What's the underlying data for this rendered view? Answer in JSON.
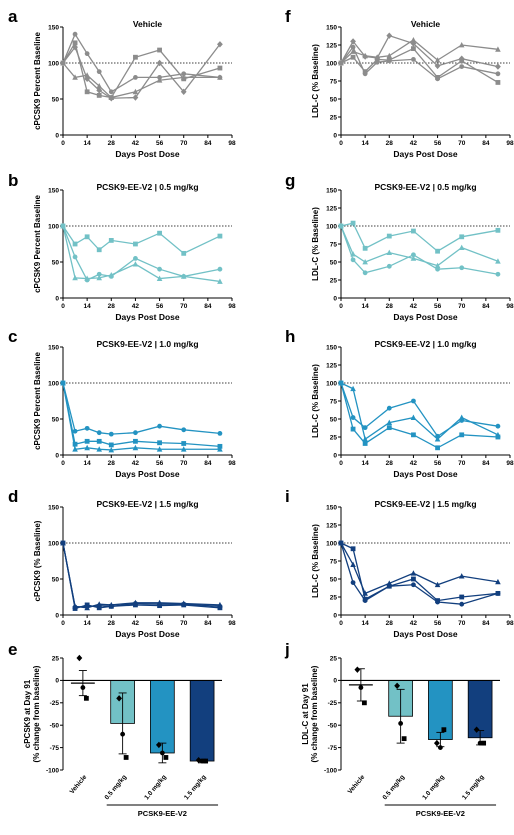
{
  "colors": {
    "Vehicle": "#8c8c8c",
    "0.5 mg/kg": "#72c1c6",
    "1.0 mg/kg": "#2393c2",
    "1.5 mg/kg": "#123f7e"
  },
  "chart_data": [
    {
      "panel": "a",
      "type": "line",
      "title": "Vehicle",
      "xlabel": "Days Post Dose",
      "ylabel": "cPCSK9 Percent Baseline",
      "xlim": [
        0,
        98
      ],
      "ylim": [
        0,
        150
      ],
      "xticks": [
        0,
        14,
        28,
        42,
        56,
        70,
        84,
        98
      ],
      "yticks": [
        0,
        50,
        100,
        150
      ],
      "reference_line": 100,
      "color_key": "Vehicle",
      "series": [
        {
          "marker": "circle",
          "x": [
            0,
            7,
            14,
            21,
            28,
            42,
            56,
            70,
            91
          ],
          "y": [
            100,
            140,
            113,
            88,
            60,
            80,
            80,
            85,
            80
          ]
        },
        {
          "marker": "square",
          "x": [
            0,
            7,
            14,
            21,
            28,
            42,
            56,
            70,
            91
          ],
          "y": [
            100,
            128,
            60,
            55,
            52,
            108,
            118,
            78,
            93
          ]
        },
        {
          "marker": "triangle",
          "x": [
            0,
            7,
            14,
            21,
            28,
            42,
            56,
            70,
            91
          ],
          "y": [
            100,
            80,
            83,
            68,
            52,
            60,
            76,
            80,
            80
          ]
        },
        {
          "marker": "diamond",
          "x": [
            0,
            7,
            14,
            21,
            28,
            42,
            56,
            70,
            91
          ],
          "y": [
            100,
            122,
            78,
            62,
            51,
            52,
            100,
            60,
            126
          ]
        }
      ]
    },
    {
      "panel": "f",
      "type": "line",
      "title": "Vehicle",
      "xlabel": "Days Post Dose",
      "ylabel": "LDL-C (% Baseline)",
      "xlim": [
        0,
        98
      ],
      "ylim": [
        0,
        150
      ],
      "xticks": [
        0,
        14,
        28,
        42,
        56,
        70,
        84,
        98
      ],
      "yticks": [
        0,
        25,
        50,
        75,
        100,
        125,
        150
      ],
      "reference_line": 100,
      "color_key": "Vehicle",
      "series": [
        {
          "marker": "circle",
          "x": [
            0,
            7,
            14,
            21,
            28,
            42,
            56,
            70,
            91
          ],
          "y": [
            100,
            122,
            85,
            101,
            103,
            105,
            78,
            95,
            85
          ]
        },
        {
          "marker": "square",
          "x": [
            0,
            7,
            14,
            21,
            28,
            42,
            56,
            70,
            91
          ],
          "y": [
            100,
            108,
            88,
            105,
            104,
            120,
            80,
            103,
            73
          ]
        },
        {
          "marker": "triangle",
          "x": [
            0,
            7,
            14,
            21,
            28,
            42,
            56,
            70,
            91
          ],
          "y": [
            100,
            116,
            110,
            108,
            110,
            132,
            104,
            125,
            119
          ]
        },
        {
          "marker": "diamond",
          "x": [
            0,
            7,
            14,
            21,
            28,
            42,
            56,
            70,
            91
          ],
          "y": [
            100,
            130,
            109,
            107,
            138,
            127,
            96,
            106,
            95
          ]
        }
      ]
    },
    {
      "panel": "b",
      "type": "line",
      "title": "PCSK9-EE-V2 | 0.5 mg/kg",
      "xlabel": "Days Post Dose",
      "ylabel": "cPCSK9 Percent Baseline",
      "xlim": [
        0,
        98
      ],
      "ylim": [
        0,
        150
      ],
      "xticks": [
        0,
        14,
        28,
        42,
        56,
        70,
        84,
        98
      ],
      "yticks": [
        0,
        50,
        100,
        150
      ],
      "reference_line": 100,
      "color_key": "0.5 mg/kg",
      "series": [
        {
          "marker": "square",
          "x": [
            0,
            7,
            14,
            21,
            28,
            42,
            56,
            70,
            91
          ],
          "y": [
            100,
            75,
            85,
            67,
            80,
            75,
            90,
            62,
            86
          ]
        },
        {
          "marker": "circle",
          "x": [
            0,
            7,
            14,
            21,
            28,
            42,
            56,
            70,
            91
          ],
          "y": [
            100,
            57,
            25,
            33,
            30,
            55,
            40,
            30,
            40
          ]
        },
        {
          "marker": "triangle",
          "x": [
            0,
            7,
            14,
            21,
            28,
            42,
            56,
            70,
            91
          ],
          "y": [
            100,
            28,
            27,
            28,
            32,
            47,
            27,
            30,
            23
          ]
        }
      ]
    },
    {
      "panel": "g",
      "type": "line",
      "title": "PCSK9-EE-V2 | 0.5 mg/kg",
      "xlabel": "Days Post Dose",
      "ylabel": "LDL-C (% Baseline)",
      "xlim": [
        0,
        98
      ],
      "ylim": [
        0,
        150
      ],
      "xticks": [
        0,
        14,
        28,
        42,
        56,
        70,
        84,
        98
      ],
      "yticks": [
        0,
        25,
        50,
        75,
        100,
        125,
        150
      ],
      "reference_line": 100,
      "color_key": "0.5 mg/kg",
      "series": [
        {
          "marker": "square",
          "x": [
            0,
            7,
            14,
            28,
            42,
            56,
            70,
            91
          ],
          "y": [
            100,
            104,
            69,
            86,
            93,
            65,
            85,
            94
          ]
        },
        {
          "marker": "triangle",
          "x": [
            0,
            7,
            14,
            28,
            42,
            56,
            70,
            91
          ],
          "y": [
            100,
            61,
            50,
            63,
            55,
            45,
            70,
            51
          ]
        },
        {
          "marker": "circle",
          "x": [
            0,
            7,
            14,
            28,
            42,
            56,
            70,
            91
          ],
          "y": [
            100,
            53,
            35,
            44,
            60,
            40,
            42,
            33
          ]
        }
      ]
    },
    {
      "panel": "c",
      "type": "line",
      "title": "PCSK9-EE-V2 | 1.0 mg/kg",
      "xlabel": "Days Post Dose",
      "ylabel": "cPCSK9 Percent Baseline",
      "xlim": [
        0,
        98
      ],
      "ylim": [
        0,
        150
      ],
      "xticks": [
        0,
        14,
        28,
        42,
        56,
        70,
        84,
        98
      ],
      "yticks": [
        0,
        50,
        100,
        150
      ],
      "reference_line": 100,
      "color_key": "1.0 mg/kg",
      "series": [
        {
          "marker": "circle",
          "x": [
            0,
            7,
            14,
            21,
            28,
            42,
            56,
            70,
            91
          ],
          "y": [
            100,
            33,
            37,
            31,
            29,
            31,
            40,
            35,
            30
          ]
        },
        {
          "marker": "square",
          "x": [
            0,
            7,
            14,
            21,
            28,
            42,
            56,
            70,
            91
          ],
          "y": [
            100,
            15,
            19,
            19,
            14,
            19,
            17,
            16,
            12
          ]
        },
        {
          "marker": "triangle",
          "x": [
            0,
            7,
            14,
            21,
            28,
            42,
            56,
            70,
            91
          ],
          "y": [
            100,
            8,
            10,
            8,
            7,
            10,
            8,
            8,
            8
          ]
        }
      ]
    },
    {
      "panel": "h",
      "type": "line",
      "title": "PCSK9-EE-V2 | 1.0 mg/kg",
      "xlabel": "Days Post Dose",
      "ylabel": "LDL-C (% Baseline)",
      "xlim": [
        0,
        98
      ],
      "ylim": [
        0,
        150
      ],
      "xticks": [
        0,
        14,
        28,
        42,
        56,
        70,
        84,
        98
      ],
      "yticks": [
        0,
        25,
        50,
        75,
        100,
        125,
        150
      ],
      "reference_line": 100,
      "color_key": "1.0 mg/kg",
      "series": [
        {
          "marker": "circle",
          "x": [
            0,
            7,
            14,
            28,
            42,
            56,
            70,
            91
          ],
          "y": [
            100,
            52,
            38,
            65,
            75,
            26,
            48,
            40
          ]
        },
        {
          "marker": "triangle",
          "x": [
            0,
            7,
            14,
            28,
            42,
            56,
            70,
            91
          ],
          "y": [
            100,
            92,
            22,
            45,
            52,
            22,
            52,
            28
          ]
        },
        {
          "marker": "square",
          "x": [
            0,
            7,
            14,
            28,
            42,
            56,
            70,
            91
          ],
          "y": [
            100,
            36,
            16,
            38,
            28,
            10,
            28,
            25
          ]
        }
      ]
    },
    {
      "panel": "d",
      "type": "line",
      "title": "PCSK9-EE-V2 | 1.5 mg/kg",
      "xlabel": "Days Post Dose",
      "ylabel": "cPCSK9 (% Baseline)",
      "xlim": [
        0,
        98
      ],
      "ylim": [
        0,
        150
      ],
      "xticks": [
        0,
        14,
        28,
        42,
        56,
        70,
        84,
        98
      ],
      "yticks": [
        0,
        50,
        100,
        150
      ],
      "reference_line": 100,
      "color_key": "1.5 mg/kg",
      "series": [
        {
          "marker": "circle",
          "x": [
            0,
            7,
            14,
            21,
            28,
            42,
            56,
            70,
            91
          ],
          "y": [
            100,
            11,
            12,
            13,
            12,
            16,
            15,
            15,
            12
          ]
        },
        {
          "marker": "square",
          "x": [
            0,
            7,
            14,
            21,
            28,
            42,
            56,
            70,
            91
          ],
          "y": [
            100,
            9,
            14,
            10,
            12,
            14,
            13,
            14,
            10
          ]
        },
        {
          "marker": "triangle",
          "x": [
            0,
            7,
            14,
            21,
            28,
            42,
            56,
            70,
            91
          ],
          "y": [
            100,
            12,
            10,
            15,
            14,
            17,
            17,
            16,
            14
          ]
        }
      ]
    },
    {
      "panel": "i",
      "type": "line",
      "title": "PCSK9-EE-V2 | 1.5 mg/kg",
      "xlabel": "Days Post Dose",
      "ylabel": "LDL-C (% Baseline)",
      "xlim": [
        0,
        98
      ],
      "ylim": [
        0,
        150
      ],
      "xticks": [
        0,
        14,
        28,
        42,
        56,
        70,
        84,
        98
      ],
      "yticks": [
        0,
        25,
        50,
        75,
        100,
        125,
        150
      ],
      "reference_line": 100,
      "color_key": "1.5 mg/kg",
      "series": [
        {
          "marker": "square",
          "x": [
            0,
            7,
            14,
            28,
            42,
            56,
            70,
            91
          ],
          "y": [
            100,
            92,
            22,
            40,
            50,
            20,
            25,
            30
          ]
        },
        {
          "marker": "triangle",
          "x": [
            0,
            7,
            14,
            28,
            42,
            56,
            70,
            91
          ],
          "y": [
            100,
            70,
            30,
            44,
            58,
            42,
            54,
            46
          ]
        },
        {
          "marker": "circle",
          "x": [
            0,
            7,
            14,
            28,
            42,
            56,
            70,
            91
          ],
          "y": [
            100,
            45,
            20,
            40,
            42,
            18,
            15,
            30
          ]
        }
      ]
    },
    {
      "panel": "e",
      "type": "bar",
      "ylabel": [
        "cPCSK9 at Day 91",
        "(% change from baseline)"
      ],
      "categories": [
        "Vehicle",
        "0.5 mg/kg",
        "1.0 mg/kg",
        "1.5 mg/kg"
      ],
      "group_label": "PCSK9-EE-V2",
      "group_members": [
        1,
        2,
        3
      ],
      "ylim": [
        -100,
        25
      ],
      "yticks": [
        -100,
        -75,
        -50,
        -25,
        0,
        25
      ],
      "values": [
        -3,
        -48,
        -81,
        -90
      ],
      "errors": [
        14,
        34,
        11,
        2
      ],
      "points": [
        [
          25,
          -8,
          -20
        ],
        [
          -20,
          -60,
          -86
        ],
        [
          -72,
          -81,
          -86
        ],
        [
          -89,
          -90,
          -90
        ]
      ]
    },
    {
      "panel": "j",
      "type": "bar",
      "ylabel": [
        "LDL-C at Day 91",
        "(% change from baseline)"
      ],
      "categories": [
        "Vehicle",
        "0.5 mg/kg",
        "1.0 mg/kg",
        "1.5 mg/kg"
      ],
      "group_label": "PCSK9-EE-V2",
      "group_members": [
        1,
        2,
        3
      ],
      "ylim": [
        -100,
        25
      ],
      "yticks": [
        -100,
        -75,
        -50,
        -25,
        0,
        25
      ],
      "values": [
        -5,
        -40,
        -66,
        -64
      ],
      "errors": [
        18,
        30,
        8,
        8
      ],
      "points": [
        [
          12,
          -8,
          -25
        ],
        [
          -6,
          -48,
          -65
        ],
        [
          -70,
          -75,
          -55
        ],
        [
          -55,
          -70,
          -70
        ]
      ]
    }
  ]
}
